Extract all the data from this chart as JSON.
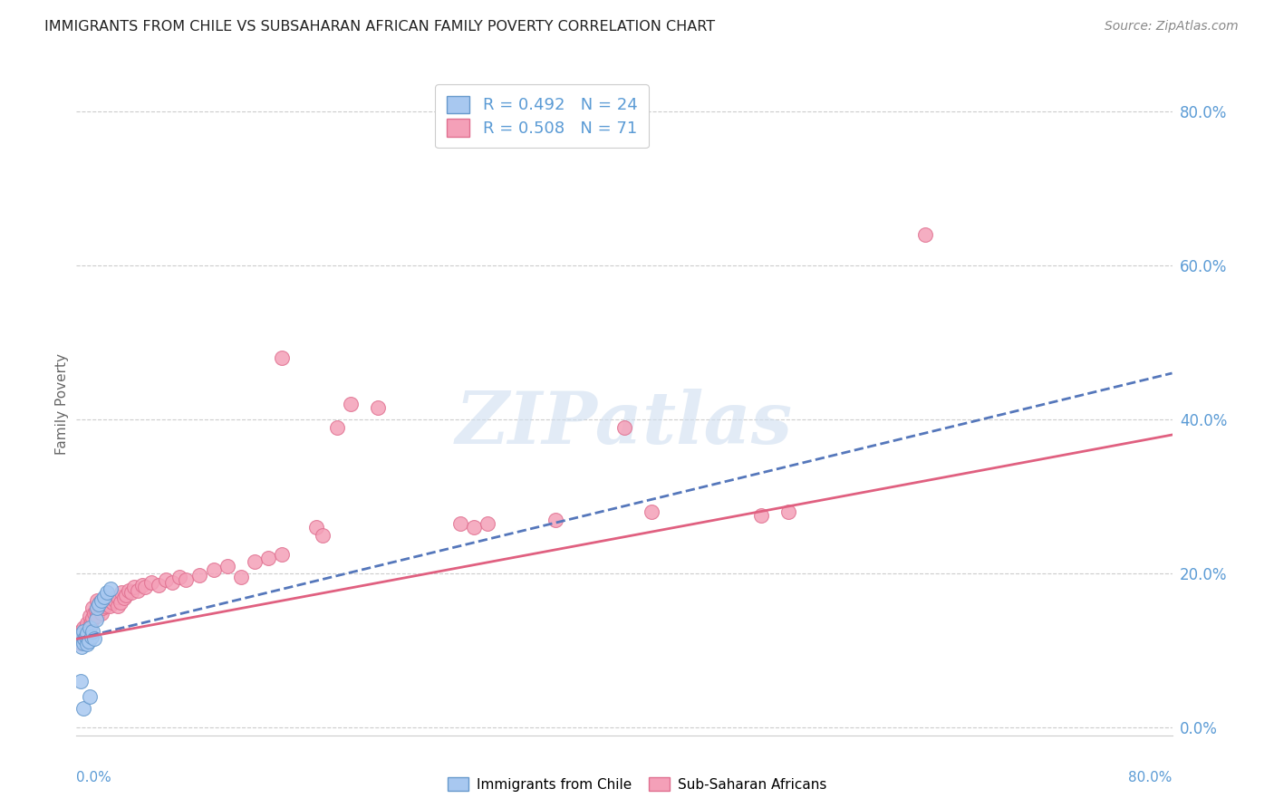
{
  "title": "IMMIGRANTS FROM CHILE VS SUBSAHARAN AFRICAN FAMILY POVERTY CORRELATION CHART",
  "source": "Source: ZipAtlas.com",
  "ylabel": "Family Poverty",
  "ytick_values": [
    0.0,
    0.2,
    0.4,
    0.6,
    0.8
  ],
  "xlim": [
    0.0,
    0.8
  ],
  "ylim": [
    -0.01,
    0.85
  ],
  "chile_color": "#a8c8f0",
  "chile_edge_color": "#6699cc",
  "africa_color": "#f4a0b8",
  "africa_edge_color": "#e07090",
  "chile_line_color": "#5577bb",
  "africa_line_color": "#e06080",
  "axis_color": "#5b9bd5",
  "grid_color": "#cccccc",
  "background_color": "#ffffff",
  "watermark_color": "#d0dff0",
  "chile_scatter": [
    [
      0.002,
      0.115
    ],
    [
      0.003,
      0.12
    ],
    [
      0.004,
      0.105
    ],
    [
      0.005,
      0.125
    ],
    [
      0.005,
      0.11
    ],
    [
      0.006,
      0.115
    ],
    [
      0.007,
      0.118
    ],
    [
      0.008,
      0.108
    ],
    [
      0.008,
      0.122
    ],
    [
      0.009,
      0.112
    ],
    [
      0.01,
      0.13
    ],
    [
      0.011,
      0.118
    ],
    [
      0.012,
      0.125
    ],
    [
      0.013,
      0.115
    ],
    [
      0.014,
      0.14
    ],
    [
      0.015,
      0.155
    ],
    [
      0.016,
      0.16
    ],
    [
      0.018,
      0.165
    ],
    [
      0.02,
      0.17
    ],
    [
      0.022,
      0.175
    ],
    [
      0.025,
      0.18
    ],
    [
      0.003,
      0.06
    ],
    [
      0.005,
      0.025
    ],
    [
      0.01,
      0.04
    ]
  ],
  "africa_scatter": [
    [
      0.002,
      0.115
    ],
    [
      0.003,
      0.11
    ],
    [
      0.003,
      0.125
    ],
    [
      0.004,
      0.118
    ],
    [
      0.005,
      0.12
    ],
    [
      0.005,
      0.13
    ],
    [
      0.006,
      0.115
    ],
    [
      0.006,
      0.125
    ],
    [
      0.007,
      0.118
    ],
    [
      0.007,
      0.13
    ],
    [
      0.008,
      0.122
    ],
    [
      0.008,
      0.135
    ],
    [
      0.009,
      0.128
    ],
    [
      0.01,
      0.132
    ],
    [
      0.01,
      0.145
    ],
    [
      0.011,
      0.138
    ],
    [
      0.012,
      0.142
    ],
    [
      0.012,
      0.155
    ],
    [
      0.013,
      0.148
    ],
    [
      0.014,
      0.152
    ],
    [
      0.015,
      0.145
    ],
    [
      0.015,
      0.165
    ],
    [
      0.016,
      0.158
    ],
    [
      0.017,
      0.162
    ],
    [
      0.018,
      0.148
    ],
    [
      0.019,
      0.155
    ],
    [
      0.02,
      0.162
    ],
    [
      0.021,
      0.158
    ],
    [
      0.022,
      0.165
    ],
    [
      0.023,
      0.16
    ],
    [
      0.024,
      0.158
    ],
    [
      0.025,
      0.165
    ],
    [
      0.026,
      0.162
    ],
    [
      0.027,
      0.168
    ],
    [
      0.028,
      0.165
    ],
    [
      0.03,
      0.158
    ],
    [
      0.03,
      0.17
    ],
    [
      0.032,
      0.162
    ],
    [
      0.033,
      0.175
    ],
    [
      0.035,
      0.168
    ],
    [
      0.036,
      0.172
    ],
    [
      0.038,
      0.178
    ],
    [
      0.04,
      0.175
    ],
    [
      0.042,
      0.182
    ],
    [
      0.045,
      0.178
    ],
    [
      0.048,
      0.185
    ],
    [
      0.05,
      0.182
    ],
    [
      0.055,
      0.188
    ],
    [
      0.06,
      0.185
    ],
    [
      0.065,
      0.192
    ],
    [
      0.07,
      0.188
    ],
    [
      0.075,
      0.195
    ],
    [
      0.08,
      0.192
    ],
    [
      0.09,
      0.198
    ],
    [
      0.1,
      0.205
    ],
    [
      0.11,
      0.21
    ],
    [
      0.12,
      0.195
    ],
    [
      0.13,
      0.215
    ],
    [
      0.14,
      0.22
    ],
    [
      0.15,
      0.225
    ],
    [
      0.175,
      0.26
    ],
    [
      0.18,
      0.25
    ],
    [
      0.19,
      0.39
    ],
    [
      0.2,
      0.42
    ],
    [
      0.22,
      0.415
    ],
    [
      0.15,
      0.48
    ],
    [
      0.28,
      0.265
    ],
    [
      0.29,
      0.26
    ],
    [
      0.3,
      0.265
    ],
    [
      0.35,
      0.27
    ],
    [
      0.4,
      0.39
    ],
    [
      0.42,
      0.28
    ],
    [
      0.5,
      0.275
    ],
    [
      0.52,
      0.28
    ],
    [
      0.62,
      0.64
    ]
  ],
  "chile_line": {
    "x0": 0.0,
    "y0": 0.115,
    "x1": 0.8,
    "y1": 0.46
  },
  "africa_line": {
    "x0": 0.0,
    "y0": 0.115,
    "x1": 0.8,
    "y1": 0.38
  }
}
